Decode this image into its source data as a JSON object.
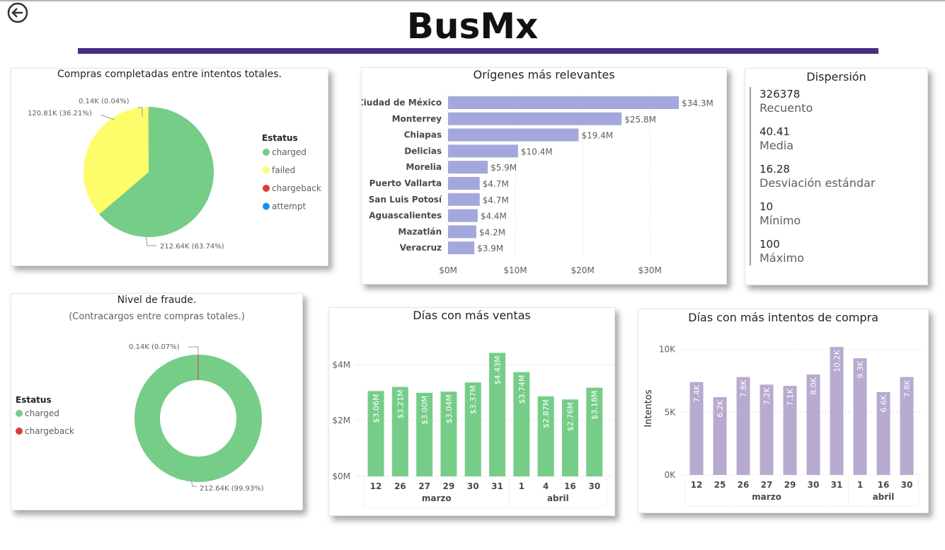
{
  "page": {
    "title": "BusMx",
    "colors": {
      "accent_bar": "#4a2c80",
      "charged": "#76cd88",
      "failed": "#fdfd6c",
      "chargeback": "#e03a3a",
      "attempt": "#1f8ef1",
      "bar_blue": "#a3a8dc",
      "bar_purple": "#b8aacf"
    }
  },
  "nav": {
    "back_icon": "arrow-left-circle-icon"
  },
  "card_compras": {
    "title": "Compras completadas entre intentos totales.",
    "legend_title": "Estatus",
    "legend": [
      {
        "label": "charged",
        "color": "#76cd88"
      },
      {
        "label": "failed",
        "color": "#fdfd6c"
      },
      {
        "label": "chargeback",
        "color": "#e03a3a"
      },
      {
        "label": "attempt",
        "color": "#1f8ef1"
      }
    ],
    "labels": {
      "charged": "212.64K (63.74%)",
      "failed": "120.81K (36.21%)",
      "chargeback": "0.14K (0.04%)"
    }
  },
  "card_fraude": {
    "title": "Nivel de fraude.",
    "subtitle": "(Contracargos entre compras totales.)",
    "legend_title": "Estatus",
    "legend": [
      {
        "label": "charged",
        "color": "#76cd88"
      },
      {
        "label": "chargeback",
        "color": "#e03a3a"
      }
    ],
    "labels": {
      "charged": "212.64K (99.93%)",
      "chargeback": "0.14K (0.07%)"
    }
  },
  "card_origenes": {
    "title": "Orígenes más relevantes"
  },
  "card_dispersion": {
    "title": "Dispersión",
    "stats": [
      {
        "value": "326378",
        "label": "Recuento"
      },
      {
        "value": "40.41",
        "label": "Media"
      },
      {
        "value": "16.28",
        "label": "Desviación estándar"
      },
      {
        "value": "10",
        "label": "Mínimo"
      },
      {
        "value": "100",
        "label": "Máximo"
      }
    ]
  },
  "card_ventas": {
    "title": "Días con más ventas"
  },
  "card_intentos": {
    "title": "Días con más intentos de compra"
  },
  "chart_data": [
    {
      "type": "pie",
      "title": "Compras completadas entre intentos totales.",
      "legend_title": "Estatus",
      "legend_position": "right",
      "slices": [
        {
          "name": "charged",
          "value": 212.64,
          "percent": 63.74
        },
        {
          "name": "failed",
          "value": 120.81,
          "percent": 36.21
        },
        {
          "name": "chargeback",
          "value": 0.14,
          "percent": 0.04
        },
        {
          "name": "attempt",
          "value": 0,
          "percent": 0
        }
      ]
    },
    {
      "type": "pie",
      "variant": "donut",
      "title": "Nivel de fraude.",
      "subtitle": "(Contracargos entre compras totales.)",
      "legend_title": "Estatus",
      "legend_position": "left",
      "slices": [
        {
          "name": "charged",
          "value": 212.64,
          "percent": 99.93
        },
        {
          "name": "chargeback",
          "value": 0.14,
          "percent": 0.07
        }
      ]
    },
    {
      "type": "bar",
      "orientation": "horizontal",
      "title": "Orígenes más relevantes",
      "categories": [
        "Ciudad de México",
        "Monterrey",
        "Chiapas",
        "Delicias",
        "Morelia",
        "Puerto Vallarta",
        "San Luis Potosí",
        "Aguascalientes",
        "Mazatlán",
        "Veracruz"
      ],
      "values": [
        34.3,
        25.8,
        19.4,
        10.4,
        5.9,
        4.7,
        4.7,
        4.4,
        4.2,
        3.9
      ],
      "value_labels": [
        "$34.3M",
        "$25.8M",
        "$19.4M",
        "$10.4M",
        "$5.9M",
        "$4.7M",
        "$4.7M",
        "$4.4M",
        "$4.2M",
        "$3.9M"
      ],
      "xlim": [
        0,
        36
      ],
      "xticks": [
        0,
        10,
        20,
        30
      ],
      "xtick_labels": [
        "$0M",
        "$10M",
        "$20M",
        "$30M"
      ],
      "grid": true
    },
    {
      "type": "bar",
      "title": "Días con más ventas",
      "categories": [
        "12",
        "26",
        "27",
        "29",
        "30",
        "31",
        "1",
        "4",
        "16",
        "30"
      ],
      "groups": [
        {
          "label": "marzo",
          "count": 6
        },
        {
          "label": "abril",
          "count": 4
        }
      ],
      "values": [
        3.06,
        3.21,
        3.0,
        3.04,
        3.37,
        4.43,
        3.74,
        2.87,
        2.76,
        3.18
      ],
      "value_labels": [
        "$3.06M",
        "$3.21M",
        "$3.00M",
        "$3.04M",
        "$3.37M",
        "$4.43M",
        "$3.74M",
        "$2.87M",
        "$2.76M",
        "$3.18M"
      ],
      "ylim": [
        0,
        4.9
      ],
      "yticks": [
        0,
        2,
        4
      ],
      "ytick_labels": [
        "$0M",
        "$2M",
        "$4M"
      ],
      "grid": true
    },
    {
      "type": "bar",
      "title": "Días con más intentos de compra",
      "ylabel": "Intentos",
      "categories": [
        "12",
        "25",
        "26",
        "27",
        "29",
        "30",
        "31",
        "1",
        "16",
        "30"
      ],
      "groups": [
        {
          "label": "marzo",
          "count": 7
        },
        {
          "label": "abril",
          "count": 3
        }
      ],
      "values": [
        7.4,
        6.2,
        7.8,
        7.2,
        7.1,
        8.0,
        10.2,
        9.3,
        6.6,
        7.8
      ],
      "value_labels": [
        "7.4K",
        "6.2K",
        "7.8K",
        "7.2K",
        "7.1K",
        "8.0K",
        "10.2K",
        "9.3K",
        "6.6K",
        "7.8K"
      ],
      "ylim": [
        0,
        10.6
      ],
      "yticks": [
        0,
        5,
        10
      ],
      "ytick_labels": [
        "0K",
        "5K",
        "10K"
      ],
      "grid": true
    }
  ]
}
